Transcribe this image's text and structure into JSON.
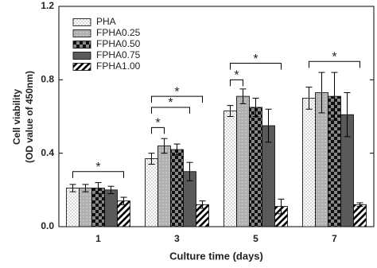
{
  "chart_data": {
    "type": "bar",
    "y_label": [
      "Cell viability",
      "(OD value of 450nm)"
    ],
    "x_label": "Culture time (days)",
    "categories": [
      "1",
      "3",
      "5",
      "7"
    ],
    "ylim": [
      0,
      1.2
    ],
    "yticks": [
      {
        "value": 0,
        "label": "0.0"
      },
      0.4,
      0.8,
      1.2
    ],
    "legend": "upper left",
    "series": [
      {
        "name": "PHA",
        "color": "#ffffff",
        "values": [
          0.21,
          0.37,
          0.63,
          0.7
        ],
        "errors": [
          0.02,
          0.03,
          0.03,
          0.06
        ]
      },
      {
        "name": "FPHA0.25",
        "color": "#b0b0b0",
        "values": [
          0.21,
          0.44,
          0.71,
          0.73
        ],
        "errors": [
          0.02,
          0.04,
          0.04,
          0.11
        ]
      },
      {
        "name": "FPHA0.50",
        "color": "#888888",
        "values": [
          0.21,
          0.42,
          0.65,
          0.71
        ],
        "errors": [
          0.03,
          0.03,
          0.05,
          0.13
        ]
      },
      {
        "name": "FPHA0.75",
        "color": "#5a5a5a",
        "values": [
          0.2,
          0.3,
          0.55,
          0.61
        ],
        "errors": [
          0.02,
          0.05,
          0.09,
          0.12
        ]
      },
      {
        "name": "FPHA1.00",
        "color": "#ffffff",
        "values": [
          0.14,
          0.12,
          0.11,
          0.12
        ],
        "errors": [
          0.02,
          0.02,
          0.04,
          0.01
        ]
      }
    ],
    "annotations": [
      "*",
      "*",
      "*",
      "*",
      "*",
      "*",
      "*"
    ]
  }
}
